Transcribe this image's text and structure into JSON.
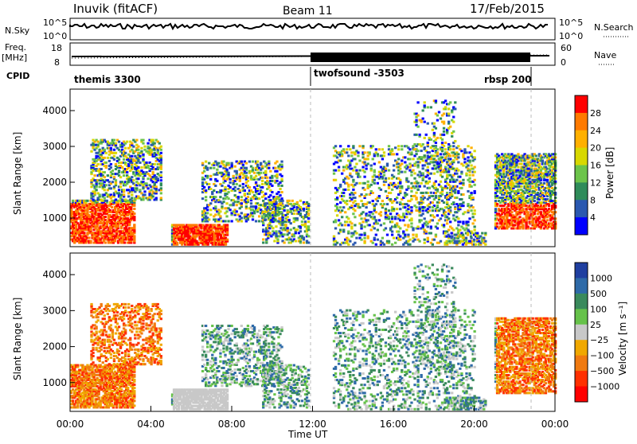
{
  "header": {
    "station": "Inuvik (fitACF)",
    "beam": "Beam 11",
    "date": "17/Feb/2015"
  },
  "chart_data": [
    {
      "type": "line",
      "panel": "noise",
      "left_label": "N.Sky",
      "right_label": "N.Search",
      "left_ticks": [
        "10^5",
        "10^0"
      ],
      "right_ticks": [
        "10^5",
        "10^0"
      ]
    },
    {
      "type": "line",
      "panel": "frequency",
      "left_label": "Freq.",
      "left_unit": "[MHz]",
      "right_label": "Nave",
      "left_ticks": [
        "18",
        "8"
      ],
      "right_ticks": [
        "60",
        "0"
      ]
    },
    {
      "type": "table",
      "panel": "cpid",
      "label": "CPID",
      "segments": [
        {
          "name": "themis 3300",
          "start_h": 0,
          "end_h": 12
        },
        {
          "name": "twofsound -3503",
          "start_h": 12,
          "end_h": 23.0
        },
        {
          "name": "rbsp 200",
          "start_h": 20.5,
          "end_h": 23.0
        }
      ]
    },
    {
      "type": "heatmap",
      "panel": "power",
      "ylabel": "Slant Range [km]",
      "yticks": [
        1000,
        2000,
        3000,
        4000
      ],
      "ylim": [
        200,
        4600
      ],
      "colorbar_label": "Power [dB]",
      "colorbar_ticks": [
        "28",
        "24",
        "20",
        "16",
        "12",
        "8",
        "4"
      ],
      "colorbar_colors": [
        "#ff0000",
        "#ff7a00",
        "#ffb000",
        "#d8d800",
        "#6cc44a",
        "#2f8c5a",
        "#2a58b0",
        "#0000ff"
      ]
    },
    {
      "type": "heatmap",
      "panel": "velocity",
      "ylabel": "Slant Range [km]",
      "yticks": [
        1000,
        2000,
        3000,
        4000
      ],
      "ylim": [
        200,
        4600
      ],
      "colorbar_label": "Velocity [m s⁻¹]",
      "colorbar_ticks": [
        "1000",
        "500",
        "100",
        "25",
        "−25",
        "−100",
        "−500",
        "−1000"
      ],
      "colorbar_colors": [
        "#1f3fa0",
        "#2e6aa8",
        "#3a8a5c",
        "#66c24a",
        "#c8c8c8",
        "#f0a800",
        "#f07a10",
        "#ff3000",
        "#ff0000"
      ]
    }
  ],
  "xaxis": {
    "label": "Time UT",
    "ticks": [
      "00:00",
      "04:00",
      "08:00",
      "12:00",
      "16:00",
      "20:00",
      "00:00"
    ],
    "range_h": [
      0,
      24
    ]
  }
}
